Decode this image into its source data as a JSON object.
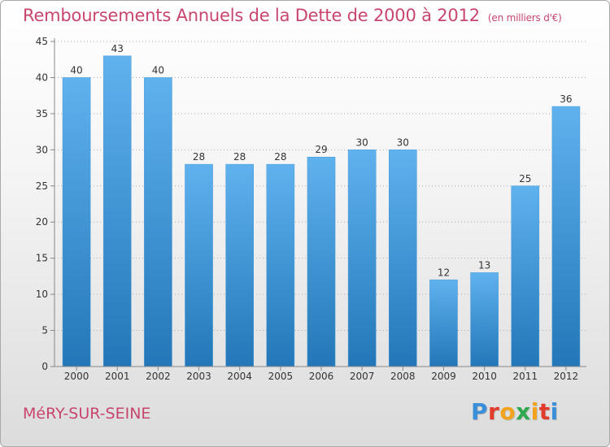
{
  "header": {
    "title": "Remboursements Annuels de la Dette de 2000 à 2012",
    "unit": "(en milliers d'€)"
  },
  "footer": {
    "commune": "MéRY-SUR-SEINE",
    "logo_text": "Proxiti",
    "logo_colors": [
      "#3b8ed8",
      "#e23b2c",
      "#f2a31b",
      "#2fa84f",
      "#f2a31b",
      "#e23b2c",
      "#3b8ed8"
    ]
  },
  "colors": {
    "title": "#c8466e",
    "bar_light": "#5fb2ee",
    "bar_dark": "#2377b8",
    "axis": "#888888",
    "grid": "#aaaaaa"
  },
  "chart_data": {
    "type": "bar",
    "title": "Remboursements Annuels de la Dette de 2000 à 2012",
    "subtitle": "(en milliers d'€)",
    "xlabel": "",
    "ylabel": "",
    "categories": [
      "2000",
      "2001",
      "2002",
      "2003",
      "2004",
      "2005",
      "2006",
      "2007",
      "2008",
      "2009",
      "2010",
      "2011",
      "2012"
    ],
    "values": [
      40,
      43,
      40,
      28,
      28,
      28,
      29,
      30,
      30,
      12,
      13,
      25,
      36
    ],
    "ylim": [
      0,
      45
    ],
    "yticks": [
      0,
      5,
      10,
      15,
      20,
      25,
      30,
      35,
      40,
      45
    ],
    "grid": "horizontal dotted",
    "legend": "none"
  }
}
